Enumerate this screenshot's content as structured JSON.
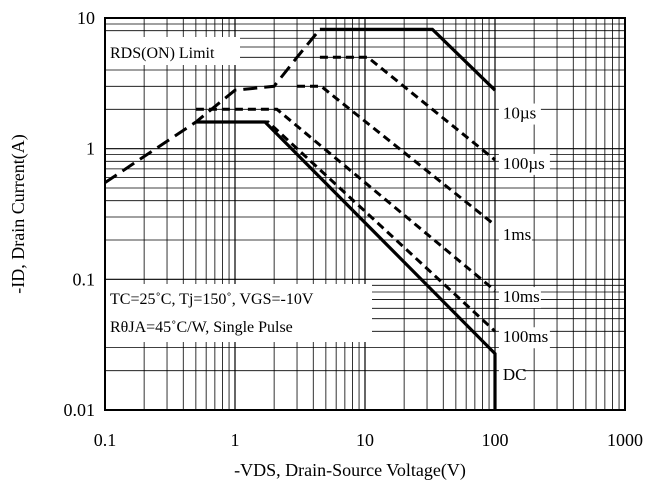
{
  "chart_data": {
    "type": "line",
    "title": "",
    "xlabel": "-VDS, Drain-Source Voltage(V)",
    "ylabel": "-ID, Drain Current(A)",
    "x_scale": "log",
    "y_scale": "log",
    "xlim": [
      0.1,
      1000
    ],
    "ylim": [
      0.01,
      10
    ],
    "x_ticks": [
      0.1,
      1,
      10,
      100,
      1000
    ],
    "x_tick_labels": [
      "0.1",
      "1",
      "10",
      "100",
      "1000"
    ],
    "y_ticks": [
      0.01,
      0.1,
      1,
      10
    ],
    "y_tick_labels": [
      "0.01",
      "0.1",
      "1",
      "10"
    ],
    "grid": true,
    "annotations": [
      "RDS(ON) Limit",
      "TC=25˚C, Tj=150˚, VGS=-10V",
      "RθJA=45˚C/W, Single Pulse"
    ],
    "series": [
      {
        "name": "RDS(ON) Limit",
        "style": "dashed",
        "x": [
          0.1,
          0.5,
          1.0,
          2.0,
          3.0,
          4.5
        ],
        "y": [
          0.55,
          1.6,
          2.8,
          3.0,
          5.0,
          8.2
        ]
      },
      {
        "name": "10µs",
        "style": "solid",
        "x": [
          4.5,
          33,
          100
        ],
        "y": [
          8.2,
          8.2,
          2.8
        ]
      },
      {
        "name": "100µs",
        "style": "dashed",
        "x": [
          4.5,
          10.5,
          100
        ],
        "y": [
          5.0,
          5.0,
          0.82
        ]
      },
      {
        "name": "1ms",
        "style": "dashed",
        "x": [
          3.0,
          4.6,
          100
        ],
        "y": [
          3.0,
          3.0,
          0.26
        ]
      },
      {
        "name": "10ms",
        "style": "dashed",
        "x": [
          0.5,
          2.1,
          100
        ],
        "y": [
          2.0,
          2.0,
          0.082
        ]
      },
      {
        "name": "100ms",
        "style": "dashed",
        "x": [
          1.0,
          1.8,
          100
        ],
        "y": [
          1.6,
          1.6,
          0.04
        ]
      },
      {
        "name": "DC",
        "style": "solid",
        "x": [
          0.5,
          1.7,
          100,
          100
        ],
        "y": [
          1.6,
          1.6,
          0.027,
          0.01
        ]
      }
    ],
    "curve_labels": [
      {
        "text": "10µs",
        "x": 115,
        "y": 1.7
      },
      {
        "text": "100µs",
        "x": 115,
        "y": 0.7
      },
      {
        "text": "1ms",
        "x": 115,
        "y": 0.2
      },
      {
        "text": "10ms",
        "x": 115,
        "y": 0.067
      },
      {
        "text": "100ms",
        "x": 115,
        "y": 0.033
      },
      {
        "text": "DC",
        "x": 115,
        "y": 0.017
      }
    ]
  }
}
